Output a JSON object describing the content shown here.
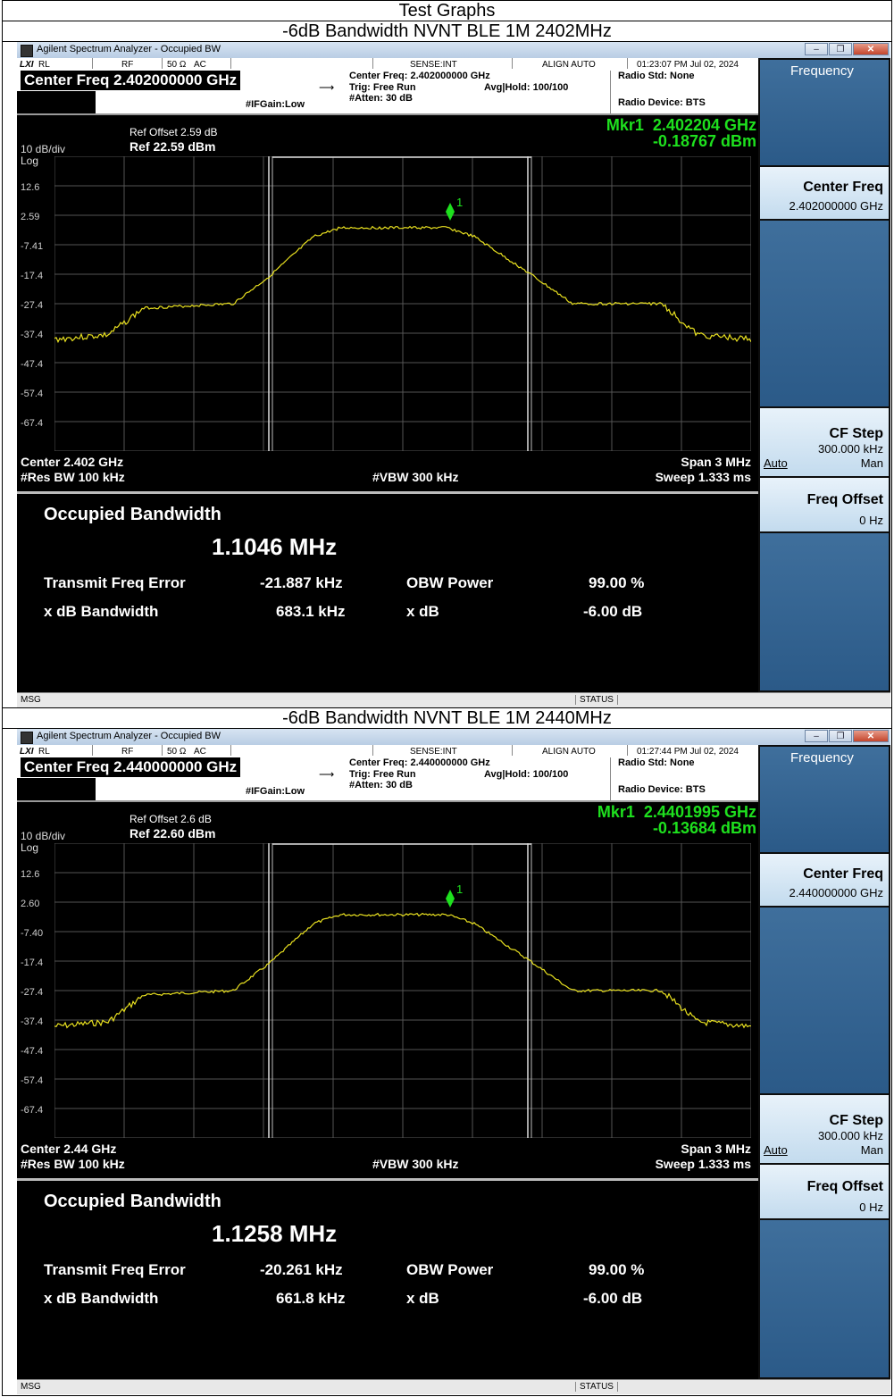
{
  "page": {
    "title": "Test Graphs"
  },
  "graphs": [
    {
      "caption": "-6dB Bandwidth NVNT BLE 1M 2402MHz",
      "window_title": "Agilent Spectrum Analyzer - Occupied BW",
      "rl": "RL",
      "rf": "RF",
      "impedance": "50 Ω",
      "coupling": "AC",
      "sense": "SENSE:INT",
      "align": "ALIGN AUTO",
      "timestamp": "01:23:07 PM Jul 02, 2024",
      "center_freq_big": "Center Freq 2.402000000 GHz",
      "center_freq_small": "Center Freq: 2.402000000 GHz",
      "trig": "Trig: Free Run",
      "avg_hold": "Avg|Hold: 100/100",
      "atten": "#Atten: 30 dB",
      "ifgain": "#IFGain:Low",
      "radio_std": "Radio Std: None",
      "radio_device": "Radio Device: BTS",
      "ref_offset": "Ref Offset 2.59 dB",
      "ref_level": "Ref 22.59 dBm",
      "scale": "10 dB/div",
      "scale_type": "Log",
      "marker_label": "Mkr1",
      "marker_freq": "2.402204 GHz",
      "marker_level": "-0.18767 dBm",
      "marker_num": "1",
      "y_ticks": [
        "12.6",
        "2.59",
        "-7.41",
        "-17.4",
        "-27.4",
        "-37.4",
        "-47.4",
        "-57.4",
        "-67.4"
      ],
      "center": "Center  2.402 GHz",
      "res_bw": "#Res BW  100 kHz",
      "vbw": "#VBW  300 kHz",
      "span": "Span 3 MHz",
      "sweep": "Sweep  1.333 ms",
      "results": {
        "occupied_label": "Occupied Bandwidth",
        "occupied_value": "1.1046 MHz",
        "tfe_label": "Transmit Freq Error",
        "tfe_value": "-21.887 kHz",
        "obw_power_label": "OBW Power",
        "obw_power_value": "99.00 %",
        "xdb_bw_label": "x dB Bandwidth",
        "xdb_bw_value": "683.1 kHz",
        "xdb_label": "x dB",
        "xdb_value": "-6.00 dB"
      },
      "softkeys": {
        "menu_title": "Frequency",
        "center_freq_label": "Center Freq",
        "center_freq_value": "2.402000000 GHz",
        "cf_step_label": "CF Step",
        "cf_step_value": "300.000 kHz",
        "auto": "Auto",
        "man": "Man",
        "freq_offset_label": "Freq Offset",
        "freq_offset_value": "0 Hz"
      },
      "status": {
        "msg": "MSG",
        "status": "STATUS"
      }
    },
    {
      "caption": "-6dB Bandwidth NVNT BLE 1M 2440MHz",
      "window_title": "Agilent Spectrum Analyzer - Occupied BW",
      "rl": "RL",
      "rf": "RF",
      "impedance": "50 Ω",
      "coupling": "AC",
      "sense": "SENSE:INT",
      "align": "ALIGN AUTO",
      "timestamp": "01:27:44 PM Jul 02, 2024",
      "center_freq_big": "Center Freq 2.440000000 GHz",
      "center_freq_small": "Center Freq: 2.440000000 GHz",
      "trig": "Trig: Free Run",
      "avg_hold": "Avg|Hold: 100/100",
      "atten": "#Atten: 30 dB",
      "ifgain": "#IFGain:Low",
      "radio_std": "Radio Std: None",
      "radio_device": "Radio Device: BTS",
      "ref_offset": "Ref Offset 2.6 dB",
      "ref_level": "Ref 22.60 dBm",
      "scale": "10 dB/div",
      "scale_type": "Log",
      "marker_label": "Mkr1",
      "marker_freq": "2.4401995 GHz",
      "marker_level": "-0.13684 dBm",
      "marker_num": "1",
      "y_ticks": [
        "12.6",
        "2.60",
        "-7.40",
        "-17.4",
        "-27.4",
        "-37.4",
        "-47.4",
        "-57.4",
        "-67.4"
      ],
      "center": "Center  2.44 GHz",
      "res_bw": "#Res BW  100 kHz",
      "vbw": "#VBW  300 kHz",
      "span": "Span 3 MHz",
      "sweep": "Sweep  1.333 ms",
      "results": {
        "occupied_label": "Occupied Bandwidth",
        "occupied_value": "1.1258 MHz",
        "tfe_label": "Transmit Freq Error",
        "tfe_value": "-20.261 kHz",
        "obw_power_label": "OBW Power",
        "obw_power_value": "99.00 %",
        "xdb_bw_label": "x dB Bandwidth",
        "xdb_bw_value": "661.8 kHz",
        "xdb_label": "x dB",
        "xdb_value": "-6.00 dB"
      },
      "softkeys": {
        "menu_title": "Frequency",
        "center_freq_label": "Center Freq",
        "center_freq_value": "2.440000000 GHz",
        "cf_step_label": "CF Step",
        "cf_step_value": "300.000 kHz",
        "auto": "Auto",
        "man": "Man",
        "freq_offset_label": "Freq Offset",
        "freq_offset_value": "0 Hz"
      },
      "status": {
        "msg": "MSG",
        "status": "STATUS"
      }
    }
  ],
  "colors": {
    "trace": "#e8e020",
    "marker": "#1ee01e",
    "softkey_dark": "#2b5a88",
    "softkey_light": "#d6e8f5"
  }
}
